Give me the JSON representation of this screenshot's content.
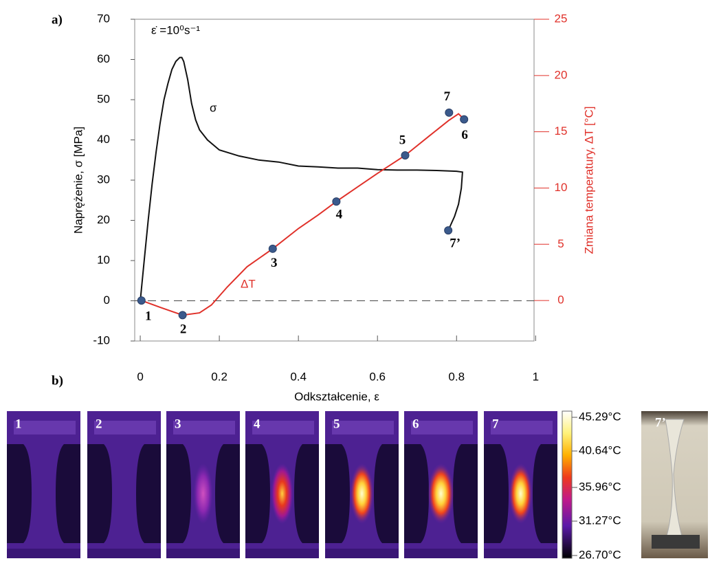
{
  "chart_data": {
    "type": "line",
    "annotation": "ε̇ =10⁰s⁻¹",
    "xlabel": "Odkształcenie, ε",
    "ylabel": "Naprężenie, σ [MPa]",
    "y2label": "Zmiana temperatury, ΔT [°C]",
    "xlim": [
      -0.014,
      0.996
    ],
    "xticks": [
      0,
      0.2,
      0.4,
      0.6,
      0.8,
      1
    ],
    "ylim": [
      -10,
      70
    ],
    "yticks": [
      -10,
      0,
      10,
      20,
      30,
      40,
      50,
      60,
      70
    ],
    "y2lim": [
      -3.6,
      25
    ],
    "y2ticks": [
      0,
      5,
      10,
      15,
      20,
      25
    ],
    "reference_line": 0,
    "series": [
      {
        "name": "σ",
        "color": "#111111",
        "axis": "y",
        "x": [
          0,
          0.01,
          0.02,
          0.03,
          0.04,
          0.05,
          0.06,
          0.07,
          0.08,
          0.09,
          0.1,
          0.105,
          0.11,
          0.12,
          0.13,
          0.14,
          0.15,
          0.17,
          0.2,
          0.25,
          0.3,
          0.35,
          0.4,
          0.45,
          0.5,
          0.55,
          0.6,
          0.65,
          0.7,
          0.75,
          0.8,
          0.815,
          0.812,
          0.805,
          0.795,
          0.785,
          0.779
        ],
        "values": [
          0,
          10,
          20,
          29,
          37,
          44,
          50,
          54,
          57.5,
          59.5,
          60.5,
          60.5,
          59.5,
          55,
          49,
          45,
          42.5,
          40,
          37.5,
          36,
          35,
          34.5,
          33.5,
          33.3,
          33,
          33,
          32.6,
          32.5,
          32.5,
          32.4,
          32.2,
          32,
          28,
          24,
          21,
          18.8,
          17.5
        ]
      },
      {
        "name": "ΔT",
        "color": "#e0312a",
        "axis": "y2",
        "x": [
          0.003,
          0.05,
          0.107,
          0.15,
          0.18,
          0.22,
          0.27,
          0.335,
          0.4,
          0.45,
          0.496,
          0.55,
          0.6,
          0.67,
          0.73,
          0.78,
          0.805,
          0.819
        ],
        "values": [
          0,
          -0.6,
          -1.3,
          -1.1,
          -0.4,
          1.2,
          3.0,
          4.6,
          6.4,
          7.6,
          8.8,
          10.1,
          11.3,
          12.9,
          14.6,
          16.0,
          16.6,
          16.1
        ]
      }
    ],
    "markers": {
      "color": "#3b5a8c",
      "labels": [
        "1",
        "2",
        "3",
        "4",
        "5",
        "6",
        "7",
        "7’"
      ],
      "x": [
        0.003,
        0.107,
        0.335,
        0.496,
        0.67,
        0.819,
        0.781,
        0.779
      ],
      "values": [
        0,
        -1.3,
        4.6,
        8.8,
        12.9,
        16.1,
        16.7,
        17.5
      ],
      "axis": [
        "y2",
        "y2",
        "y2",
        "y2",
        "y2",
        "y2",
        "y2",
        "y"
      ]
    }
  },
  "panel_labels": [
    "a)",
    "b)"
  ],
  "panel_b": {
    "image_labels": [
      "1",
      "2",
      "3",
      "4",
      "5",
      "6",
      "7"
    ],
    "colorbar_labels": [
      "45.29°C",
      "40.64°C",
      "35.96°C",
      "31.27°C",
      "26.70°C"
    ],
    "photo_label": "7’"
  }
}
